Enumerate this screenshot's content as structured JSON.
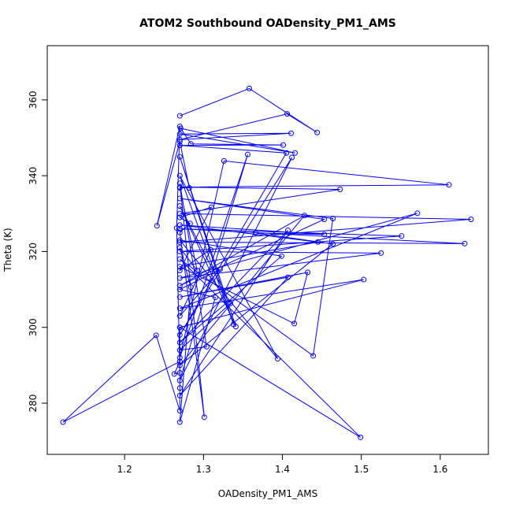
{
  "chart_data": {
    "type": "line",
    "title": "ATOM2 Southbound OADensity_PM1_AMS",
    "x_label": "OADensity_PM1_AMS",
    "y_label": "Theta (K)",
    "color": "#0000ff",
    "markers": true,
    "x": [
      1.27,
      1.358,
      1.444,
      1.406,
      1.27,
      1.411,
      1.27,
      1.416,
      1.271,
      1.284,
      1.401,
      1.27,
      1.405,
      1.27,
      1.412,
      1.27,
      1.356,
      1.27,
      1.326,
      1.611,
      1.27,
      1.473,
      1.27,
      1.639,
      1.27,
      1.631,
      1.27,
      1.551,
      1.27,
      1.525,
      1.27,
      1.571,
      1.27,
      1.503,
      1.27,
      1.499,
      1.27,
      1.439,
      1.464,
      1.27,
      1.453,
      1.27,
      1.428,
      1.27,
      1.464,
      1.366,
      1.453,
      1.27,
      1.445,
      1.27,
      1.415,
      1.432,
      1.27,
      1.407,
      1.27,
      1.407,
      1.27,
      1.399,
      1.27,
      1.394,
      1.27,
      1.338,
      1.27,
      1.341,
      1.27,
      1.334,
      1.27,
      1.304,
      1.27,
      1.301,
      1.27,
      1.283,
      1.27,
      1.31,
      1.27,
      1.309,
      1.27,
      1.321,
      1.27,
      1.315,
      1.27,
      1.284,
      1.27,
      1.292,
      1.27,
      1.282,
      1.27,
      1.241,
      1.27,
      1.266,
      1.27,
      1.263,
      1.27,
      1.122,
      1.24,
      1.27,
      1.27,
      1.27
    ],
    "values": [
      355.8,
      363.0,
      351.4,
      356.3,
      349.5,
      351.2,
      351.0,
      346.0,
      352.5,
      348.4,
      348.1,
      348.0,
      346.0,
      298.0,
      344.8,
      286.0,
      345.6,
      292.0,
      343.9,
      337.6,
      337.0,
      336.4,
      330.0,
      328.5,
      322.5,
      322.1,
      326.0,
      324.1,
      320.0,
      319.6,
      313.0,
      330.1,
      305.0,
      312.6,
      300.0,
      271.0,
      318.0,
      292.5,
      328.7,
      334.0,
      328.5,
      311.0,
      329.5,
      290.0,
      322.0,
      324.9,
      324.5,
      327.0,
      322.5,
      316.0,
      301.0,
      314.5,
      308.0,
      313.2,
      282.0,
      325.6,
      296.0,
      318.8,
      323.0,
      291.7,
      340.0,
      300.8,
      345.0,
      300.2,
      332.0,
      306.3,
      294.0,
      294.9,
      338.0,
      276.3,
      325.0,
      327.4,
      329.0,
      331.7,
      315.0,
      320.5,
      303.0,
      315.3,
      310.0,
      307.9,
      275.0,
      310.6,
      321.0,
      315.0,
      336.8,
      336.8,
      349.0,
      326.8,
      353.0,
      326.2,
      288.0,
      287.7,
      291.0,
      275.0,
      297.9,
      278.0,
      284.0,
      300.0
    ],
    "xlim": [
      1.102,
      1.661
    ],
    "ylim": [
      266.5,
      374.3
    ],
    "xticks": [
      1.2,
      1.3,
      1.4,
      1.5,
      1.6
    ],
    "yticks": [
      280,
      300,
      320,
      340,
      360
    ]
  }
}
